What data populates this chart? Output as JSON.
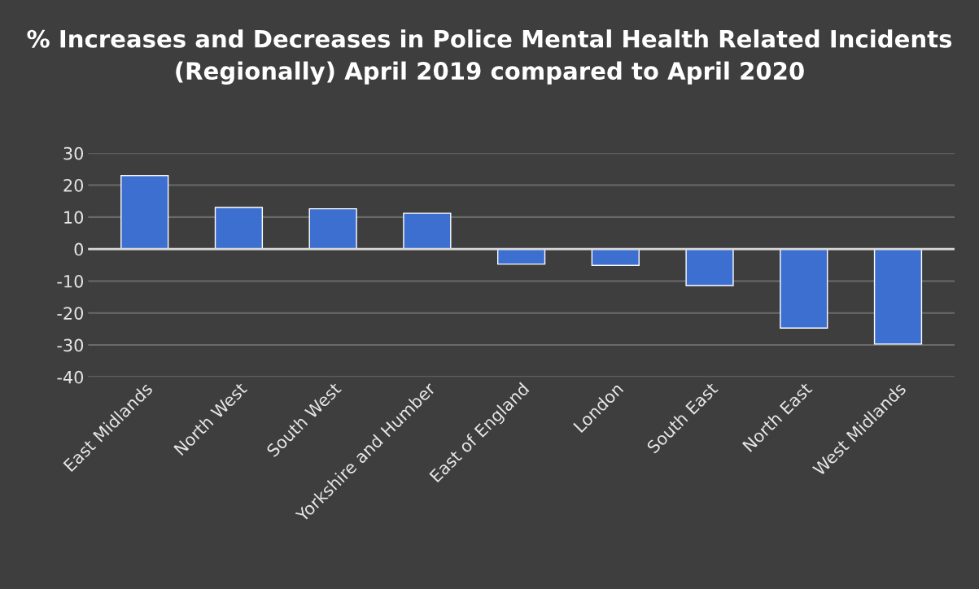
{
  "chart_data": {
    "type": "bar",
    "title": "% Increases and Decreases in Police Mental Health Related Incidents (Regionally) April 2019 compared to April 2020",
    "categories": [
      "East Midlands",
      "North West",
      "South West",
      "Yorkshire and Humber",
      "East of England",
      "London",
      "South East",
      "North East",
      "West Midlands"
    ],
    "values": [
      23,
      13,
      12.6,
      11.2,
      -4.7,
      -5.1,
      -11.4,
      -24.7,
      -29.7
    ],
    "color": "#3d6fd1",
    "ylim": [
      -40,
      30
    ],
    "yticks": [
      -40,
      -30,
      -20,
      -10,
      0,
      10,
      20,
      30
    ],
    "grid": "y"
  }
}
